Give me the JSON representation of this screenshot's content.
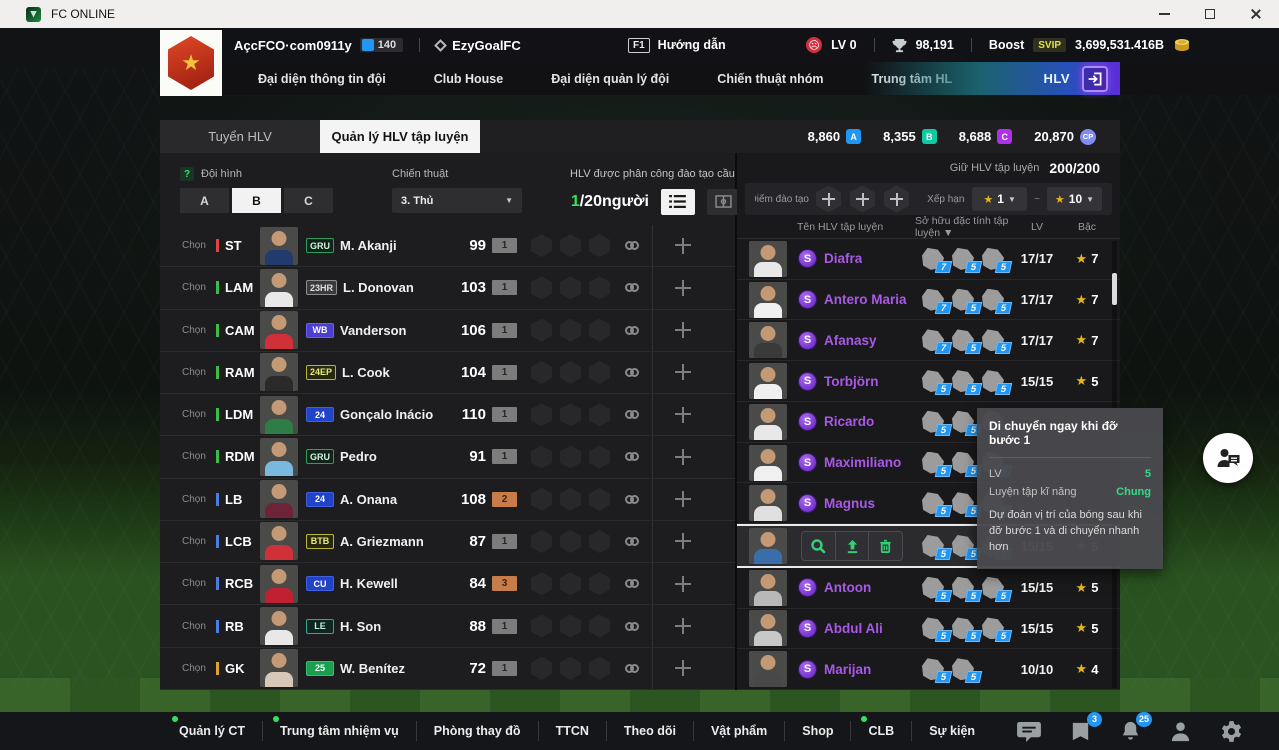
{
  "titlebar": {
    "title": "FC ONLINE"
  },
  "icons": {
    "help": "?",
    "tilde": "~",
    "star": "★",
    "caret": "▼",
    "sad_face": "☹",
    "logo_star": "★"
  },
  "header": {
    "account_name": "AçcFCO·com0911y",
    "account_level": "140",
    "club_name": "EzyGoalFC",
    "help_key": "F1",
    "help_label": "Hướng dẫn",
    "lv_label": "LV 0",
    "cup_count": "98,191",
    "boost_label": "Boost",
    "boost_badge": "SVIP",
    "money": "3,699,531.416B"
  },
  "nav": {
    "items": [
      "Đại diện thông tin đội",
      "Club House",
      "Đại diện quản lý đội",
      "Chiến thuật nhóm",
      "Trung tâm HL"
    ],
    "hlv_label": "HLV"
  },
  "tabs": {
    "tab1": "Tuyển HLV",
    "tab2": "Quản lý HLV tập luyện"
  },
  "currencies": [
    {
      "value": "8,860",
      "badge": "A",
      "color": "#2196f3"
    },
    {
      "value": "8,355",
      "badge": "B",
      "color": "#12c8a2"
    },
    {
      "value": "8,688",
      "badge": "C",
      "color": "#b02fe8"
    },
    {
      "value": "20,870",
      "badge": "CP",
      "color": "#7f8cf0"
    }
  ],
  "squad_panel": {
    "formation_label": "Đội hình",
    "formation_options": [
      "A",
      "B",
      "C"
    ],
    "formation_active": "B",
    "tactic_label": "Chiến thuật",
    "tactic_value": "3. Thủ",
    "assign_label": "HLV được phân công đào tạo cầu t",
    "assign_count": "1",
    "assign_total": "/20người",
    "select_label": "Chọn",
    "players": [
      {
        "pos": "ST",
        "role": "fw",
        "name": "M. Akanji",
        "badge": "GRU",
        "badge_style": "green-outline",
        "rating": "99",
        "count": "1",
        "count_style": "grey",
        "shirt": "#223a6e"
      },
      {
        "pos": "LAM",
        "role": "mid",
        "name": "L. Donovan",
        "badge": "23HR",
        "badge_style": "grey-outline",
        "rating": "103",
        "count": "1",
        "count_style": "grey",
        "shirt": "#e8e8e8"
      },
      {
        "pos": "CAM",
        "role": "mid",
        "name": "Vanderson",
        "badge": "WB",
        "badge_style": "purple-fill",
        "rating": "106",
        "count": "1",
        "count_style": "grey",
        "shirt": "#d03038"
      },
      {
        "pos": "RAM",
        "role": "mid",
        "name": "L. Cook",
        "badge": "24EP",
        "badge_style": "yellow-outline",
        "rating": "104",
        "count": "1",
        "count_style": "grey",
        "shirt": "#2a2a2a"
      },
      {
        "pos": "LDM",
        "role": "mid",
        "name": "Gonçalo Inácio",
        "badge": "24",
        "badge_style": "blue-fill",
        "rating": "110",
        "count": "1",
        "count_style": "grey",
        "shirt": "#2e7d46"
      },
      {
        "pos": "RDM",
        "role": "mid",
        "name": "Pedro",
        "badge": "GRU",
        "badge_style": "green-outline",
        "rating": "91",
        "count": "1",
        "count_style": "grey",
        "shirt": "#7ab8e0"
      },
      {
        "pos": "LB",
        "role": "df",
        "name": "A. Onana",
        "badge": "24",
        "badge_style": "blue-fill",
        "rating": "108",
        "count": "2",
        "count_style": "orange",
        "shirt": "#6e2438"
      },
      {
        "pos": "LCB",
        "role": "df",
        "name": "A. Griezmann",
        "badge": "BTB",
        "badge_style": "yellow-outline",
        "rating": "87",
        "count": "1",
        "count_style": "grey",
        "shirt": "#d03038"
      },
      {
        "pos": "RCB",
        "role": "df",
        "name": "H. Kewell",
        "badge": "CU",
        "badge_style": "blue-fill",
        "rating": "84",
        "count": "3",
        "count_style": "orange",
        "shirt": "#c02030"
      },
      {
        "pos": "RB",
        "role": "df",
        "name": "H. Son",
        "badge": "LE",
        "badge_style": "teal-outline",
        "rating": "88",
        "count": "1",
        "count_style": "grey",
        "shirt": "#e8e8e8"
      },
      {
        "pos": "GK",
        "role": "gk",
        "name": "W. Benítez",
        "badge": "25",
        "badge_style": "green-fill",
        "rating": "72",
        "count": "1",
        "count_style": "grey",
        "shirt": "#d8c8b8"
      }
    ]
  },
  "coach_panel": {
    "hold_label": "Giữ HLV tập luyện",
    "hold_count": "200/200",
    "points_label": "Điểm đào tạo",
    "rank_label": "Xếp hạng",
    "rank_from": "1",
    "rank_to": "10",
    "col_name": "Tên HLV tập luyện",
    "col_attr": "Sở hữu đặc tính tập luyện ▼",
    "col_lv": "LV",
    "col_tier": "Bậc",
    "coaches": [
      {
        "name": "Diafra",
        "grade": "S",
        "skills": [
          "7",
          "5",
          "5"
        ],
        "lv": "17/17",
        "stars": "7",
        "shirt": "#e8e8e8"
      },
      {
        "name": "Antero Maria",
        "grade": "S",
        "skills": [
          "7",
          "5",
          "5"
        ],
        "lv": "17/17",
        "stars": "7",
        "shirt": "#f0f0f0"
      },
      {
        "name": "Afanasy",
        "grade": "S",
        "skills": [
          "7",
          "5",
          "5"
        ],
        "lv": "17/17",
        "stars": "7",
        "shirt": "#3a3a3a"
      },
      {
        "name": "Torbjörn",
        "grade": "S",
        "skills": [
          "5",
          "5",
          "5"
        ],
        "lv": "15/15",
        "stars": "5",
        "shirt": "#f0f0f0"
      },
      {
        "name": "Ricardo",
        "grade": "S",
        "skills": [
          "5",
          "5",
          "5"
        ],
        "lv": "",
        "stars": "",
        "shirt": "#e8e8e8"
      },
      {
        "name": "Maximiliano",
        "grade": "S",
        "skills": [
          "5",
          "5",
          "5"
        ],
        "lv": "",
        "stars": "",
        "shirt": "#f0f0f0"
      },
      {
        "name": "Magnus",
        "grade": "S",
        "skills": [
          "5",
          "5",
          "5"
        ],
        "lv": "",
        "stars": "",
        "shirt": "#e0e0e0"
      },
      {
        "name": "",
        "grade": "",
        "selected": true,
        "skills": [
          "5",
          "5",
          "5"
        ],
        "lv": "15/15",
        "stars": "5",
        "shirt": "#3a6ea8"
      },
      {
        "name": "Antoon",
        "grade": "S",
        "skills": [
          "5",
          "5",
          "5"
        ],
        "lv": "15/15",
        "stars": "5",
        "shirt": "#b8b8b8"
      },
      {
        "name": "Abdul Ali",
        "grade": "S",
        "skills": [
          "5",
          "5",
          "5"
        ],
        "lv": "15/15",
        "stars": "5",
        "shirt": "#c8c8c8"
      },
      {
        "name": "Marijan",
        "grade": "S",
        "skills": [
          "5",
          "5"
        ],
        "lv": "10/10",
        "stars": "4",
        "shirt": "#484848"
      }
    ]
  },
  "tooltip": {
    "title": "Di chuyển ngay khi đỡ bước 1",
    "lv_label": "LV",
    "lv_value": "5",
    "type_label": "Luyện tập kĩ năng",
    "type_value": "Chung",
    "description": "Dự đoán vị trí của bóng sau khi đỡ bước 1 và di chuyển nhanh hơn"
  },
  "bottom_nav": {
    "items": [
      {
        "label": "Quản lý CT",
        "dot": true
      },
      {
        "label": "Trung tâm nhiệm vụ",
        "dot": true
      },
      {
        "label": "Phòng thay đồ",
        "dot": false
      },
      {
        "label": "TTCN",
        "dot": false
      },
      {
        "label": "Theo dõi",
        "dot": false
      },
      {
        "label": "Vật phẩm",
        "dot": false
      },
      {
        "label": "Shop",
        "dot": false
      },
      {
        "label": "CLB",
        "dot": true
      },
      {
        "label": "Sự kiện",
        "dot": false
      }
    ],
    "banner_badge": "3",
    "bell_badge": "25"
  }
}
